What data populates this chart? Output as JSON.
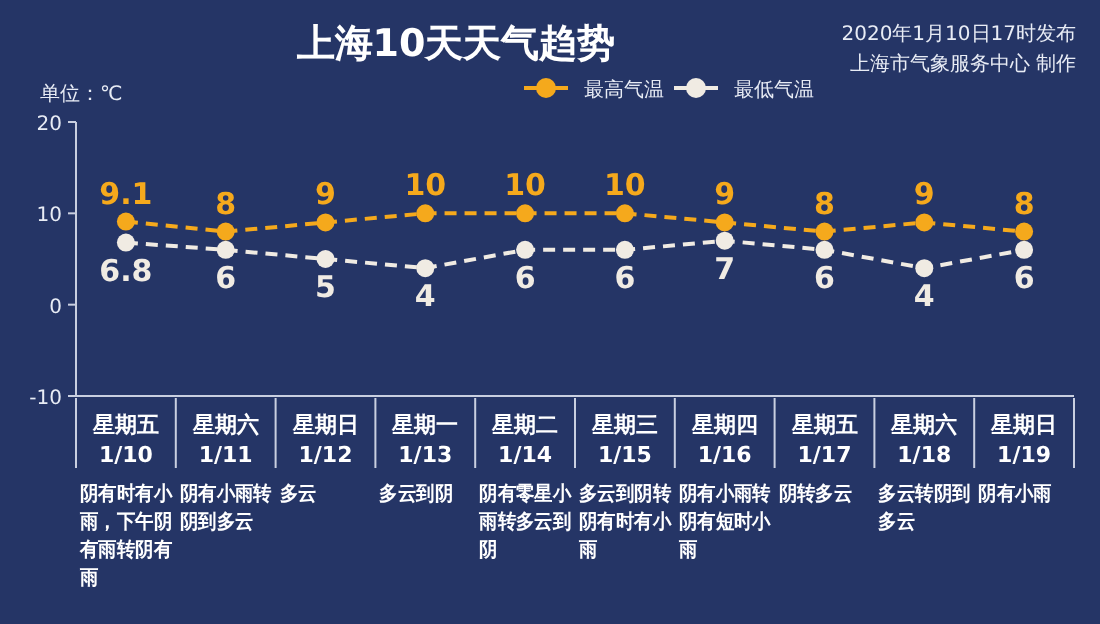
{
  "chart_data": {
    "type": "line",
    "title": "上海10天天气趋势",
    "subtitle": [
      "2020年1月10日17时发布",
      "上海市气象服务中心 制作"
    ],
    "ylabel": "单位：℃",
    "categories": [
      "星期五\n1/10",
      "星期六\n1/11",
      "星期日\n1/12",
      "星期一\n1/13",
      "星期二\n1/14",
      "星期三\n1/15",
      "星期四\n1/16",
      "星期五\n1/17",
      "星期六\n1/18",
      "星期日\n1/19"
    ],
    "series": [
      {
        "name": "最高气温",
        "color": "#f5a91c",
        "values": [
          9.1,
          8,
          9,
          10,
          10,
          10,
          9,
          8,
          9,
          8
        ]
      },
      {
        "name": "最低气温",
        "color": "#f0ebe3",
        "values": [
          6.8,
          6,
          5,
          4,
          6,
          6,
          7,
          6,
          4,
          6
        ]
      }
    ],
    "annotations": [
      "阴有时有小雨，下午阴有雨转阴有雨",
      "阴有小雨转阴到多云",
      "多云",
      "多云到阴",
      "阴有零星小雨转多云到阴",
      "多云到阴转阴有时有小雨",
      "阴有小雨转阴有短时小雨",
      "阴转多云",
      "多云转阴到多云",
      "阴有小雨"
    ],
    "ylim": [
      -10,
      20
    ],
    "yticks": [
      -10,
      0,
      10,
      20
    ],
    "grid": false,
    "legend": "top",
    "marker": "circle",
    "line_style": "dashed",
    "data_labels": true
  }
}
